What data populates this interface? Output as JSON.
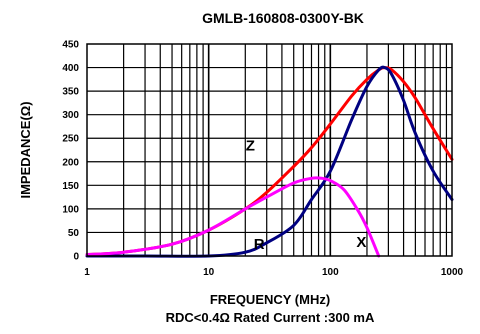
{
  "chart_data": {
    "type": "line",
    "title": "GMLB-160808-0300Y-BK",
    "xlabel": "FREQUENCY (MHz)",
    "ylabel": "IMPEDANCE(Ω)",
    "note": "RDC<0.4Ω Rated Current :300 mA",
    "x_scale": "log",
    "xlim": [
      1,
      1000
    ],
    "ylim": [
      0,
      450
    ],
    "x_ticks": [
      "1",
      "10",
      "100",
      "1000"
    ],
    "y_ticks": [
      "0",
      "50",
      "100",
      "150",
      "200",
      "250",
      "300",
      "350",
      "400",
      "450"
    ],
    "grid": true,
    "series": [
      {
        "name": "Z",
        "color": "#ff0000",
        "x": [
          1,
          2,
          5,
          10,
          20,
          30,
          50,
          70,
          100,
          150,
          200,
          250,
          280,
          320,
          400,
          500,
          700,
          1000
        ],
        "y": [
          3,
          8,
          25,
          55,
          100,
          135,
          190,
          230,
          280,
          340,
          375,
          395,
          400,
          395,
          370,
          335,
          270,
          205
        ]
      },
      {
        "name": "R",
        "color": "#000080",
        "x": [
          1,
          3,
          10,
          20,
          30,
          50,
          70,
          100,
          150,
          200,
          250,
          280,
          320,
          400,
          500,
          700,
          1000
        ],
        "y": [
          0,
          0,
          0,
          8,
          28,
          65,
          120,
          180,
          290,
          360,
          395,
          400,
          385,
          330,
          260,
          180,
          120
        ]
      },
      {
        "name": "X",
        "color": "#ff00ff",
        "x": [
          1,
          2,
          5,
          10,
          20,
          30,
          50,
          70,
          85,
          100,
          130,
          170,
          200,
          250
        ],
        "y": [
          3,
          8,
          25,
          55,
          100,
          125,
          155,
          165,
          165,
          160,
          140,
          95,
          60,
          0
        ]
      }
    ]
  }
}
